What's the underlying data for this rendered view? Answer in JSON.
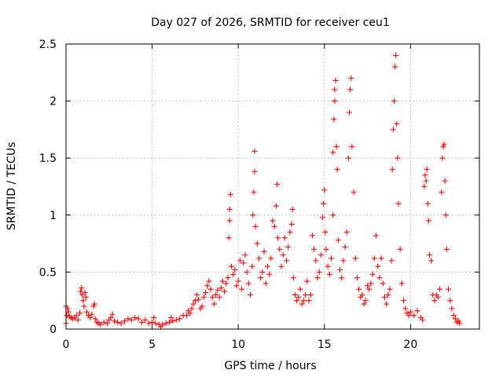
{
  "chart_data": {
    "type": "scatter",
    "title": "Day 027 of 2026, SRMTID for receiver ceu1",
    "xlabel": "GPS time / hours",
    "ylabel": "SRMTID / TECUs",
    "xlim": [
      0,
      24
    ],
    "ylim": [
      0,
      2.5
    ],
    "x_ticks": [
      0,
      5,
      10,
      15,
      20
    ],
    "x_tick_labels": [
      "0",
      "5",
      "10",
      "15",
      "20"
    ],
    "y_ticks": [
      0,
      0.5,
      1,
      1.5,
      2,
      2.5
    ],
    "y_tick_labels": [
      "0",
      "0.5",
      "1",
      "1.5",
      "2",
      "2.5"
    ],
    "grid": true,
    "marker": "plus",
    "series": [
      {
        "name": "SRMTID",
        "color": "#ff0000",
        "points": [
          [
            0.0,
            0.05
          ],
          [
            0.0,
            0.2
          ],
          [
            0.05,
            0.12
          ],
          [
            0.1,
            0.18
          ],
          [
            0.15,
            0.15
          ],
          [
            0.2,
            0.11
          ],
          [
            0.3,
            0.1
          ],
          [
            0.4,
            0.09
          ],
          [
            0.5,
            0.1
          ],
          [
            0.6,
            0.12
          ],
          [
            0.7,
            0.08
          ],
          [
            0.8,
            0.14
          ],
          [
            0.85,
            0.33
          ],
          [
            0.9,
            0.36
          ],
          [
            0.95,
            0.3
          ],
          [
            1.0,
            0.25
          ],
          [
            1.05,
            0.2
          ],
          [
            1.1,
            0.32
          ],
          [
            1.15,
            0.28
          ],
          [
            1.2,
            0.15
          ],
          [
            1.3,
            0.12
          ],
          [
            1.4,
            0.1
          ],
          [
            1.5,
            0.13
          ],
          [
            1.6,
            0.2
          ],
          [
            1.65,
            0.22
          ],
          [
            1.7,
            0.09
          ],
          [
            1.8,
            0.06
          ],
          [
            1.9,
            0.05
          ],
          [
            2.0,
            0.04
          ],
          [
            2.2,
            0.06
          ],
          [
            2.4,
            0.05
          ],
          [
            2.5,
            0.08
          ],
          [
            2.6,
            0.1
          ],
          [
            2.7,
            0.13
          ],
          [
            2.8,
            0.07
          ],
          [
            3.0,
            0.06
          ],
          [
            3.2,
            0.05
          ],
          [
            3.4,
            0.07
          ],
          [
            3.6,
            0.09
          ],
          [
            3.8,
            0.08
          ],
          [
            4.0,
            0.1
          ],
          [
            4.2,
            0.09
          ],
          [
            4.4,
            0.06
          ],
          [
            4.6,
            0.08
          ],
          [
            4.8,
            0.05
          ],
          [
            5.0,
            0.06
          ],
          [
            5.1,
            0.1
          ],
          [
            5.2,
            0.05
          ],
          [
            5.4,
            0.04
          ],
          [
            5.5,
            0.02
          ],
          [
            5.6,
            0.04
          ],
          [
            5.8,
            0.05
          ],
          [
            6.0,
            0.06
          ],
          [
            6.1,
            0.1
          ],
          [
            6.2,
            0.07
          ],
          [
            6.4,
            0.08
          ],
          [
            6.6,
            0.09
          ],
          [
            6.8,
            0.12
          ],
          [
            7.0,
            0.12
          ],
          [
            7.1,
            0.16
          ],
          [
            7.2,
            0.14
          ],
          [
            7.3,
            0.18
          ],
          [
            7.4,
            0.22
          ],
          [
            7.5,
            0.25
          ],
          [
            7.6,
            0.3
          ],
          [
            7.7,
            0.26
          ],
          [
            7.8,
            0.18
          ],
          [
            7.9,
            0.2
          ],
          [
            8.0,
            0.28
          ],
          [
            8.1,
            0.32
          ],
          [
            8.2,
            0.38
          ],
          [
            8.3,
            0.42
          ],
          [
            8.4,
            0.35
          ],
          [
            8.5,
            0.28
          ],
          [
            8.6,
            0.22
          ],
          [
            8.7,
            0.3
          ],
          [
            8.8,
            0.34
          ],
          [
            8.9,
            0.28
          ],
          [
            9.0,
            0.36
          ],
          [
            9.1,
            0.42
          ],
          [
            9.2,
            0.33
          ],
          [
            9.3,
            0.4
          ],
          [
            9.4,
            0.45
          ],
          [
            9.45,
            0.8
          ],
          [
            9.5,
            0.95
          ],
          [
            9.5,
            1.05
          ],
          [
            9.55,
            1.18
          ],
          [
            9.6,
            0.55
          ],
          [
            9.7,
            0.48
          ],
          [
            9.8,
            0.52
          ],
          [
            9.9,
            0.38
          ],
          [
            10.0,
            0.42
          ],
          [
            10.1,
            0.6
          ],
          [
            10.2,
            0.35
          ],
          [
            10.3,
            0.58
          ],
          [
            10.4,
            0.65
          ],
          [
            10.5,
            0.5
          ],
          [
            10.6,
            0.4
          ],
          [
            10.7,
            0.3
          ],
          [
            10.8,
            0.55
          ],
          [
            10.85,
            1.0
          ],
          [
            10.9,
            1.2
          ],
          [
            10.95,
            1.38
          ],
          [
            10.95,
            1.56
          ],
          [
            11.0,
            0.9
          ],
          [
            11.1,
            0.75
          ],
          [
            11.2,
            0.62
          ],
          [
            11.3,
            0.45
          ],
          [
            11.4,
            0.5
          ],
          [
            11.5,
            0.68
          ],
          [
            11.6,
            0.4
          ],
          [
            11.7,
            0.55
          ],
          [
            11.8,
            0.48
          ],
          [
            11.9,
            0.62
          ],
          [
            12.0,
            0.95
          ],
          [
            12.1,
            0.9
          ],
          [
            12.2,
            1.08
          ],
          [
            12.25,
            1.27
          ],
          [
            12.3,
            0.8
          ],
          [
            12.4,
            0.7
          ],
          [
            12.5,
            0.55
          ],
          [
            12.6,
            0.65
          ],
          [
            12.7,
            0.8
          ],
          [
            12.8,
            0.6
          ],
          [
            12.9,
            0.72
          ],
          [
            13.0,
            0.85
          ],
          [
            13.1,
            0.92
          ],
          [
            13.15,
            1.05
          ],
          [
            13.2,
            0.45
          ],
          [
            13.3,
            0.3
          ],
          [
            13.4,
            0.25
          ],
          [
            13.5,
            0.28
          ],
          [
            13.6,
            0.35
          ],
          [
            13.7,
            0.22
          ],
          [
            13.8,
            0.25
          ],
          [
            13.9,
            0.3
          ],
          [
            14.0,
            0.42
          ],
          [
            14.1,
            0.25
          ],
          [
            14.2,
            0.3
          ],
          [
            14.3,
            0.82
          ],
          [
            14.4,
            0.7
          ],
          [
            14.5,
            0.6
          ],
          [
            14.6,
            0.45
          ],
          [
            14.7,
            0.5
          ],
          [
            14.8,
            0.65
          ],
          [
            14.9,
            0.98
          ],
          [
            14.95,
            1.1
          ],
          [
            15.0,
            1.22
          ],
          [
            15.05,
            0.85
          ],
          [
            15.1,
            0.7
          ],
          [
            15.2,
            0.55
          ],
          [
            15.3,
            0.48
          ],
          [
            15.4,
            0.62
          ],
          [
            15.5,
            1.0
          ],
          [
            15.5,
            1.55
          ],
          [
            15.55,
            1.84
          ],
          [
            15.6,
            2.0
          ],
          [
            15.6,
            2.1
          ],
          [
            15.65,
            2.18
          ],
          [
            15.7,
            1.6
          ],
          [
            15.75,
            1.4
          ],
          [
            15.8,
            0.78
          ],
          [
            15.9,
            0.52
          ],
          [
            16.0,
            0.45
          ],
          [
            16.1,
            0.6
          ],
          [
            16.2,
            0.72
          ],
          [
            16.3,
            0.85
          ],
          [
            16.4,
            1.5
          ],
          [
            16.45,
            1.9
          ],
          [
            16.5,
            2.1
          ],
          [
            16.55,
            2.2
          ],
          [
            16.6,
            1.6
          ],
          [
            16.7,
            1.2
          ],
          [
            16.8,
            0.62
          ],
          [
            16.9,
            0.45
          ],
          [
            17.0,
            0.35
          ],
          [
            17.1,
            0.28
          ],
          [
            17.2,
            0.3
          ],
          [
            17.3,
            0.22
          ],
          [
            17.4,
            0.25
          ],
          [
            17.5,
            0.38
          ],
          [
            17.6,
            0.35
          ],
          [
            17.7,
            0.4
          ],
          [
            17.8,
            0.48
          ],
          [
            17.9,
            0.62
          ],
          [
            18.0,
            0.82
          ],
          [
            18.1,
            0.55
          ],
          [
            18.2,
            0.45
          ],
          [
            18.3,
            0.62
          ],
          [
            18.4,
            0.4
          ],
          [
            18.5,
            0.28
          ],
          [
            18.6,
            0.22
          ],
          [
            18.7,
            0.3
          ],
          [
            18.8,
            0.35
          ],
          [
            18.9,
            0.6
          ],
          [
            18.95,
            1.4
          ],
          [
            19.0,
            1.75
          ],
          [
            19.05,
            2.0
          ],
          [
            19.1,
            2.3
          ],
          [
            19.15,
            2.4
          ],
          [
            19.2,
            1.8
          ],
          [
            19.25,
            1.5
          ],
          [
            19.3,
            1.1
          ],
          [
            19.4,
            0.7
          ],
          [
            19.5,
            0.4
          ],
          [
            19.6,
            0.25
          ],
          [
            19.7,
            0.18
          ],
          [
            19.8,
            0.14
          ],
          [
            19.9,
            0.12
          ],
          [
            20.0,
            0.15
          ],
          [
            20.2,
            0.12
          ],
          [
            20.4,
            0.16
          ],
          [
            20.6,
            0.1
          ],
          [
            20.7,
            0.08
          ],
          [
            20.8,
            1.25
          ],
          [
            20.85,
            1.35
          ],
          [
            20.9,
            1.3
          ],
          [
            20.95,
            1.4
          ],
          [
            21.0,
            1.1
          ],
          [
            21.05,
            0.95
          ],
          [
            21.1,
            0.65
          ],
          [
            21.2,
            0.6
          ],
          [
            21.3,
            0.3
          ],
          [
            21.4,
            0.25
          ],
          [
            21.5,
            0.3
          ],
          [
            21.6,
            0.28
          ],
          [
            21.7,
            0.35
          ],
          [
            21.8,
            1.2
          ],
          [
            21.85,
            1.5
          ],
          [
            21.9,
            1.6
          ],
          [
            21.95,
            1.62
          ],
          [
            22.0,
            1.3
          ],
          [
            22.05,
            1.0
          ],
          [
            22.1,
            0.7
          ],
          [
            22.2,
            0.35
          ],
          [
            22.3,
            0.25
          ],
          [
            22.4,
            0.18
          ],
          [
            22.5,
            0.12
          ],
          [
            22.6,
            0.09
          ],
          [
            22.7,
            0.06
          ],
          [
            22.8,
            0.07
          ],
          [
            22.85,
            0.05
          ]
        ]
      }
    ]
  }
}
